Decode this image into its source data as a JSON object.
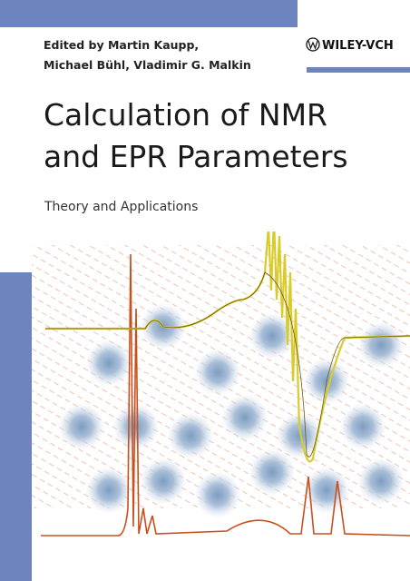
{
  "publisher": "WILEY-VCH",
  "editors": [
    "Edited by Martin Kaupp,",
    "Michael Bühl, Vladimir G. Malkin"
  ],
  "title": [
    "Calculation of NMR",
    "and EPR Parameters"
  ],
  "subtitle": "Theory and Applications"
}
